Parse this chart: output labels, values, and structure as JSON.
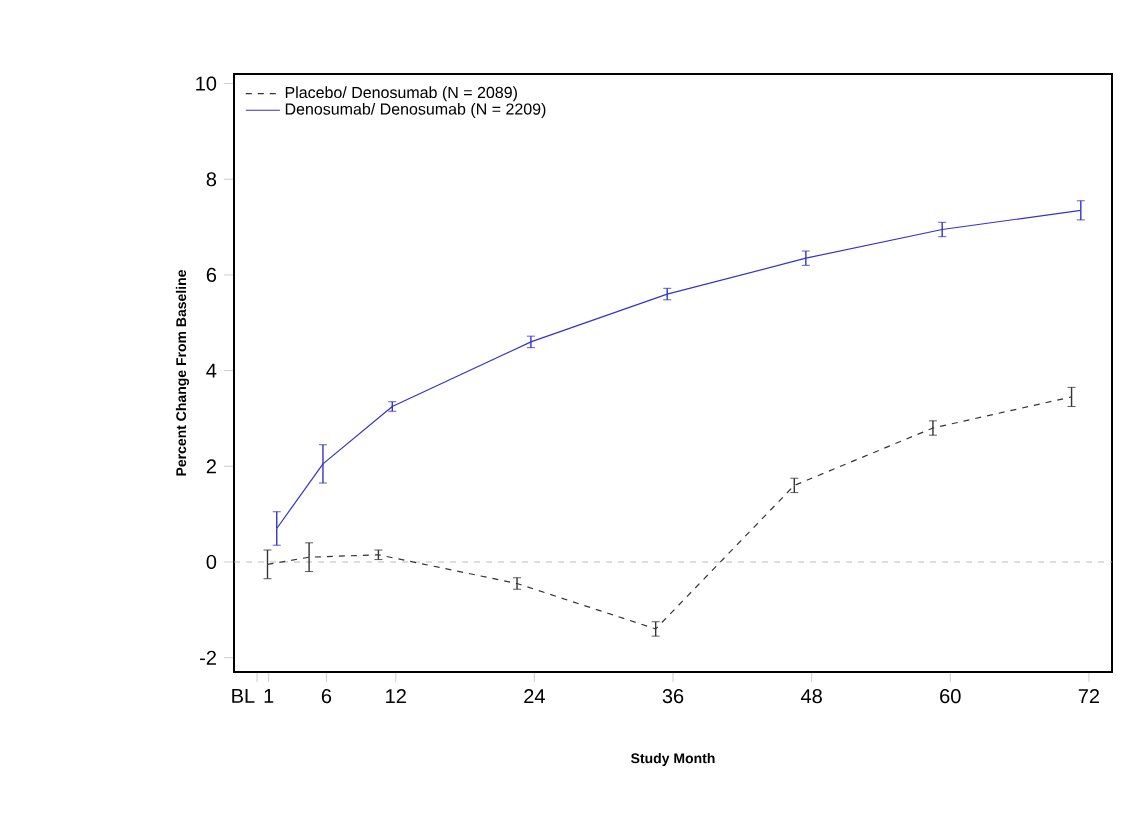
{
  "chart_data": {
    "type": "line",
    "xlabel": "Study Month",
    "ylabel": "Percent Change From Baseline",
    "xlim": [
      -2,
      74
    ],
    "ylim": [
      -2.3,
      10.2
    ],
    "xticks": [
      {
        "value": 0,
        "label": "BL"
      },
      1,
      6,
      12,
      24,
      36,
      48,
      60,
      72
    ],
    "yticks": [
      -2,
      0,
      2,
      4,
      6,
      8,
      10
    ],
    "series": [
      {
        "name": "Placebo/ Denosumab (N = 2089)",
        "color": "#333333",
        "line_style": "dashed",
        "x": [
          0.9,
          4.5,
          10.5,
          22.5,
          34.5,
          46.5,
          58.5,
          70.5
        ],
        "values": [
          -0.05,
          0.1,
          0.15,
          -0.45,
          -1.4,
          1.6,
          2.8,
          3.45
        ],
        "errors": [
          0.3,
          0.3,
          0.1,
          0.12,
          0.15,
          0.15,
          0.15,
          0.2
        ]
      },
      {
        "name": "Denosumab/ Denosumab (N = 2209)",
        "color": "#3333cc",
        "line_style": "solid",
        "x": [
          1.7,
          5.7,
          11.7,
          23.7,
          35.5,
          47.5,
          59.3,
          71.3
        ],
        "values": [
          0.7,
          2.05,
          3.25,
          4.6,
          5.6,
          6.35,
          6.95,
          7.35
        ],
        "errors": [
          0.35,
          0.4,
          0.1,
          0.12,
          0.12,
          0.15,
          0.15,
          0.2
        ]
      }
    ],
    "ref_lines": [
      {
        "axis": "y",
        "value": 0,
        "color": "#aaaaaa",
        "line_style": "dashed"
      }
    ],
    "marker": "none",
    "legend": "top left",
    "grid": false
  }
}
